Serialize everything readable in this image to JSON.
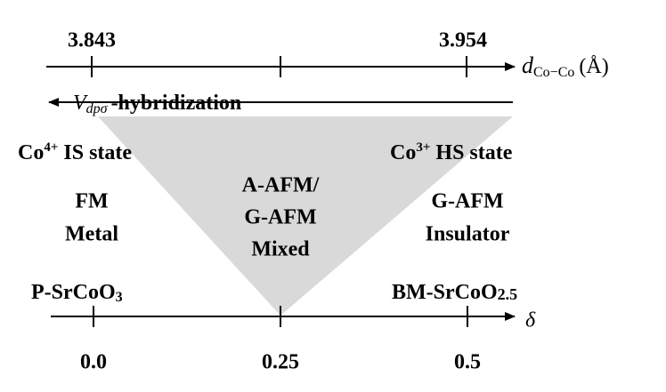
{
  "top_axis": {
    "ticks": [
      "3.843",
      "3.954"
    ],
    "label": {
      "symbol": "d",
      "subscript": "Co−Co",
      "unit": "(Å)"
    }
  },
  "arrow_label": {
    "symbol": "V",
    "subscript": "dpσ",
    "text": "-hybridization"
  },
  "left": {
    "state": {
      "element": "Co",
      "charge": "4+",
      "text": "IS state"
    },
    "order": "FM",
    "transport": "Metal",
    "compound": {
      "formula": "P-SrCoO",
      "subscript": "3"
    }
  },
  "middle": {
    "lines": [
      "A-AFM/",
      "G-AFM",
      "Mixed"
    ]
  },
  "right": {
    "state": {
      "element": "Co",
      "charge": "3+",
      "text": "HS state"
    },
    "order": "G-AFM",
    "transport": "Insulator",
    "compound": {
      "formula": "BM-SrCoO",
      "subscript": "2.5"
    }
  },
  "bottom_axis": {
    "symbol": "δ",
    "ticks": [
      "0.0",
      "0.25",
      "0.5"
    ]
  }
}
